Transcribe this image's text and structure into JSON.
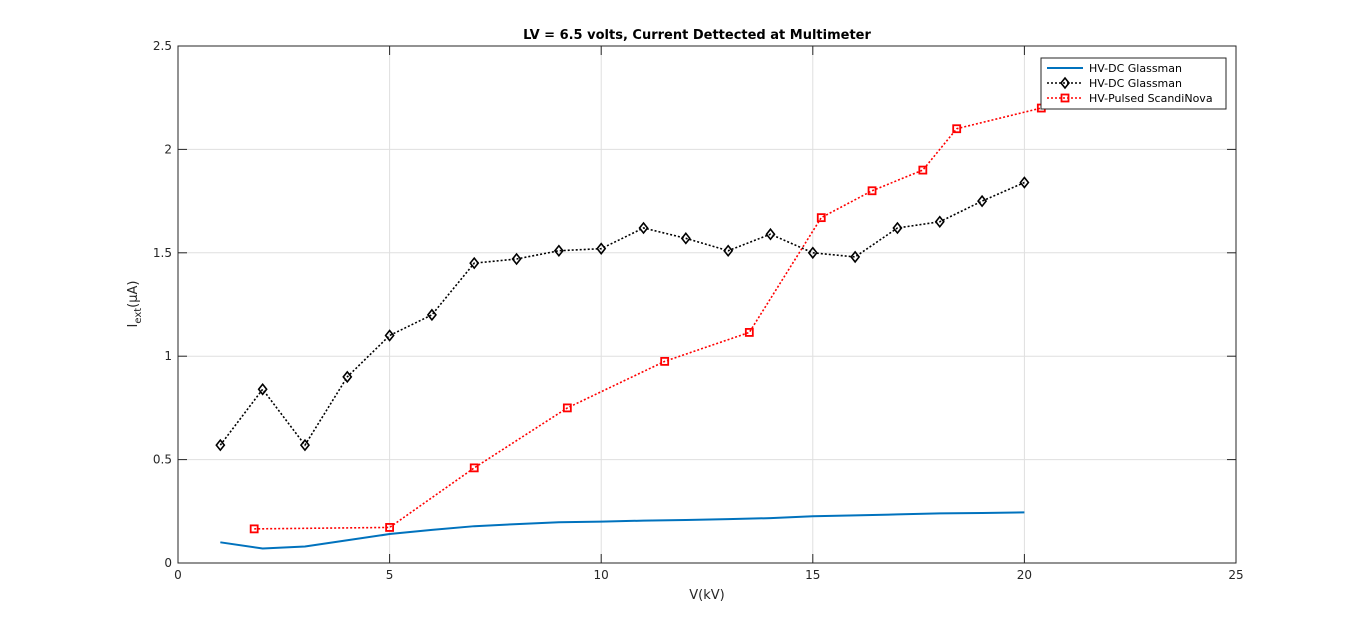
{
  "chart_data": {
    "type": "line",
    "title": "LV = 6.5 volts, Current Dettected at Multimeter",
    "xlabel": "V(kV)",
    "ylabel": {
      "main": "I",
      "sub": "ext",
      "rest": "(μA)"
    },
    "xlim": [
      0,
      25
    ],
    "ylim": [
      0,
      2.5
    ],
    "xticks": [
      0,
      5,
      10,
      15,
      20,
      25
    ],
    "yticks": [
      0,
      0.5,
      1,
      1.5,
      2,
      2.5
    ],
    "xtick_labels": [
      "0",
      "5",
      "10",
      "15",
      "20",
      "25"
    ],
    "ytick_labels": [
      "0",
      "0.5",
      "1",
      "1.5",
      "2",
      "2.5"
    ],
    "grid": true,
    "legend_position": "top-right",
    "series": [
      {
        "name": "HV-DC Glassman",
        "color": "#0072BD",
        "style": "solid",
        "marker": "none",
        "x": [
          1,
          2,
          3,
          4,
          5,
          6,
          7,
          8,
          9,
          10,
          11,
          12,
          13,
          14,
          15,
          16,
          17,
          18,
          19,
          20
        ],
        "y": [
          0.1,
          0.07,
          0.08,
          0.11,
          0.14,
          0.16,
          0.178,
          0.188,
          0.197,
          0.2,
          0.205,
          0.208,
          0.212,
          0.217,
          0.226,
          0.23,
          0.235,
          0.24,
          0.242,
          0.245
        ]
      },
      {
        "name": "HV-DC Glassman",
        "color": "#000000",
        "style": "dotted",
        "marker": "diamond",
        "x": [
          1,
          2,
          3,
          4,
          5,
          6,
          7,
          8,
          9,
          10,
          11,
          12,
          13,
          14,
          15,
          16,
          17,
          18,
          19,
          20
        ],
        "y": [
          0.57,
          0.84,
          0.57,
          0.9,
          1.1,
          1.2,
          1.45,
          1.47,
          1.51,
          1.52,
          1.62,
          1.57,
          1.51,
          1.59,
          1.5,
          1.48,
          1.62,
          1.65,
          1.75,
          1.84
        ]
      },
      {
        "name": "HV-Pulsed ScandiNova",
        "color": "#FF0000",
        "style": "dotted",
        "marker": "square",
        "x": [
          1.8,
          5,
          7,
          9.2,
          11.5,
          13.5,
          15.2,
          16.4,
          17.6,
          18.4,
          20.4
        ],
        "y": [
          0.165,
          0.172,
          0.46,
          0.75,
          0.975,
          1.115,
          1.67,
          1.8,
          1.9,
          2.1,
          2.2
        ]
      }
    ]
  }
}
